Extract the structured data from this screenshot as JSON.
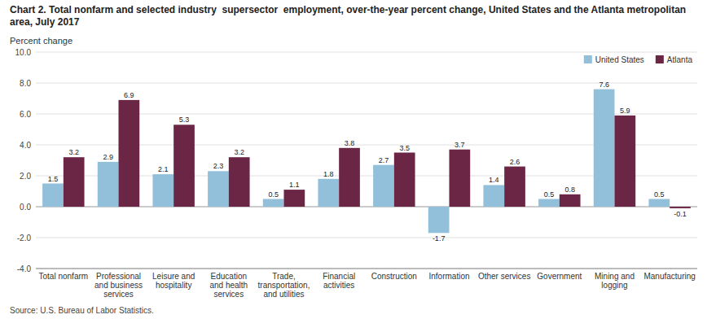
{
  "chart_data": {
    "type": "bar",
    "title": "Chart 2. Total nonfarm and selected industry  supersector  employment, over-the-year percent change, United States and the Atlanta metropolitan area, July 2017",
    "y_label": "Percent change",
    "source": "Source: U.S. Bureau of Labor Statistics.",
    "categories": [
      "Total nonfarm",
      "Professional\nand business\nservices",
      "Leisure and\nhospitality",
      "Education\nand health\nservices",
      "Trade,\ntransportation,\nand utilities",
      "Financial\nactivities",
      "Construction",
      "Information",
      "Other services",
      "Government",
      "Mining and\nlogging",
      "Manufacturing"
    ],
    "series": [
      {
        "name": "United States",
        "color": "#92c0da",
        "values": [
          1.5,
          2.9,
          2.1,
          2.3,
          0.5,
          1.8,
          2.7,
          -1.7,
          1.4,
          0.5,
          7.6,
          0.5
        ]
      },
      {
        "name": "Atlanta",
        "color": "#6b2645",
        "values": [
          3.2,
          6.9,
          5.3,
          3.2,
          1.1,
          3.8,
          3.5,
          3.7,
          2.6,
          0.8,
          5.9,
          -0.1
        ]
      }
    ],
    "ylim": [
      -4.0,
      10.0
    ],
    "yticks": [
      {
        "value": -4.0,
        "label": "-4.0"
      },
      {
        "value": -2.0,
        "label": "-2.0"
      },
      {
        "value": 0.0,
        "label": "0.0"
      },
      {
        "value": 2.0,
        "label": "2.0"
      },
      {
        "value": 4.0,
        "label": "4.0"
      },
      {
        "value": 6.0,
        "label": "6.0"
      },
      {
        "value": 8.0,
        "label": "8.0"
      },
      {
        "value": 10.0,
        "label": "10.0"
      }
    ],
    "grid": true,
    "legend": "upper right",
    "data_labels": true
  }
}
